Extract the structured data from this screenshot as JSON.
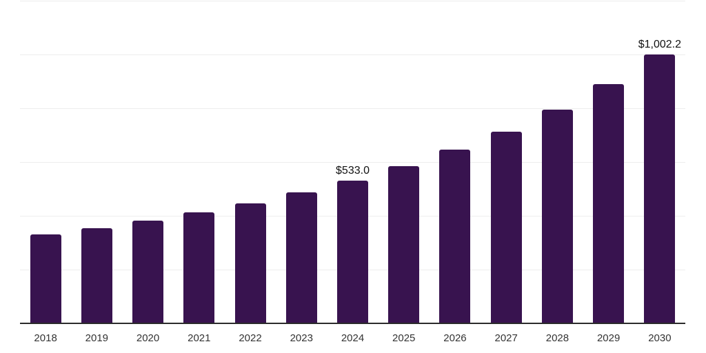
{
  "chart_data": {
    "type": "bar",
    "categories": [
      "2018",
      "2019",
      "2020",
      "2021",
      "2022",
      "2023",
      "2024",
      "2025",
      "2026",
      "2027",
      "2028",
      "2029",
      "2030"
    ],
    "values": [
      334.0,
      356.0,
      384.0,
      415.4,
      450.0,
      491.0,
      533.0,
      586.6,
      647.6,
      715.5,
      797.0,
      892.0,
      1002.2
    ],
    "data_labels": [
      {
        "category": "2024",
        "index": 6,
        "text": "$533.0"
      },
      {
        "category": "2030",
        "index": 12,
        "text": "$1,002.2"
      }
    ],
    "xlabel": "",
    "ylabel": "",
    "ylim": [
      0,
      1200
    ],
    "grid_step": 200,
    "grid": "horizontal",
    "legend": "none",
    "colors": {
      "bar": "#38134F",
      "grid": "#ededed",
      "axis_line": "#2b2b2b",
      "tick_label": "#333333",
      "data_label": "#111111",
      "background": "#ffffff"
    }
  }
}
